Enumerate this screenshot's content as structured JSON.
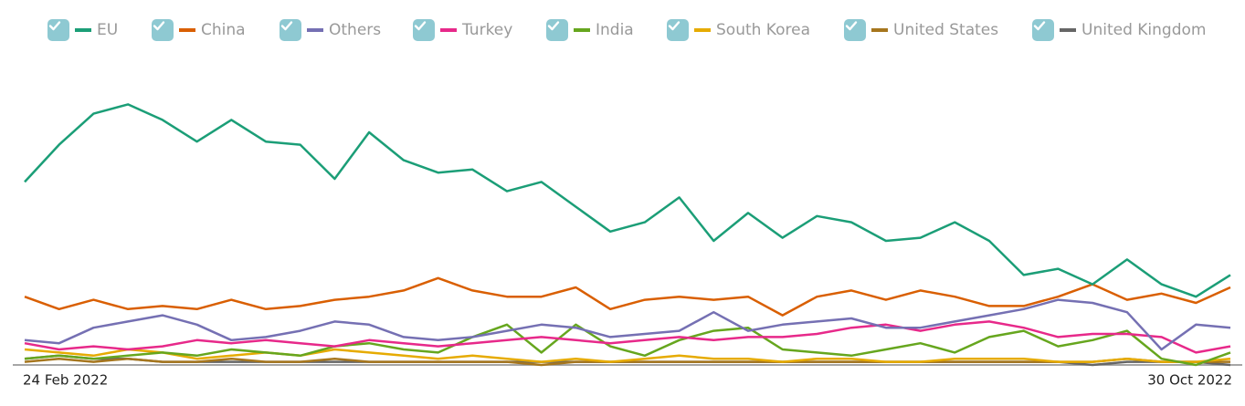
{
  "chart_data": {
    "type": "line",
    "categories": [
      "24 Feb 2022",
      null,
      null,
      null,
      null,
      null,
      null,
      null,
      null,
      null,
      null,
      null,
      null,
      null,
      null,
      null,
      null,
      null,
      null,
      null,
      null,
      null,
      null,
      null,
      null,
      null,
      null,
      null,
      null,
      null,
      null,
      null,
      null,
      null,
      null,
      "30 Oct 2022"
    ],
    "ylim": [
      0,
      100
    ],
    "series": [
      {
        "name": "EU",
        "color": "#1b9e77",
        "values": [
          59,
          71,
          81,
          84,
          79,
          72,
          79,
          72,
          71,
          60,
          75,
          66,
          62,
          63,
          56,
          59,
          51,
          43,
          46,
          54,
          40,
          49,
          41,
          48,
          46,
          40,
          41,
          46,
          40,
          29,
          31,
          26,
          34,
          26,
          22,
          29
        ]
      },
      {
        "name": "China",
        "color": "#d95f02",
        "values": [
          22,
          18,
          21,
          18,
          19,
          18,
          21,
          18,
          19,
          21,
          22,
          24,
          28,
          24,
          22,
          22,
          25,
          18,
          21,
          22,
          21,
          22,
          16,
          22,
          24,
          21,
          24,
          22,
          19,
          19,
          22,
          26,
          21,
          23,
          20,
          25
        ]
      },
      {
        "name": "Others",
        "color": "#7570b3",
        "values": [
          8,
          7,
          12,
          14,
          16,
          13,
          8,
          9,
          11,
          14,
          13,
          9,
          8,
          9,
          11,
          13,
          12,
          9,
          10,
          11,
          17,
          11,
          13,
          14,
          15,
          12,
          12,
          14,
          16,
          18,
          21,
          20,
          17,
          5,
          13,
          12
        ]
      },
      {
        "name": "Turkey",
        "color": "#e7298a",
        "values": [
          7,
          5,
          6,
          5,
          6,
          8,
          7,
          8,
          7,
          6,
          8,
          7,
          6,
          7,
          8,
          9,
          8,
          7,
          8,
          9,
          8,
          9,
          9,
          10,
          12,
          13,
          11,
          13,
          14,
          12,
          9,
          10,
          10,
          9,
          4,
          6
        ]
      },
      {
        "name": "India",
        "color": "#66a61e",
        "values": [
          2,
          3,
          2,
          3,
          4,
          3,
          5,
          4,
          3,
          6,
          7,
          5,
          4,
          9,
          13,
          4,
          13,
          6,
          3,
          8,
          11,
          12,
          5,
          4,
          3,
          5,
          7,
          4,
          9,
          11,
          6,
          8,
          11,
          2,
          0,
          4
        ]
      },
      {
        "name": "South Korea",
        "color": "#e6ab02",
        "values": [
          5,
          4,
          3,
          5,
          4,
          2,
          3,
          4,
          3,
          5,
          4,
          3,
          2,
          3,
          2,
          1,
          2,
          1,
          2,
          3,
          2,
          2,
          1,
          2,
          2,
          1,
          1,
          2,
          2,
          2,
          1,
          1,
          2,
          1,
          1,
          2
        ]
      },
      {
        "name": "United States",
        "color": "#a6761d",
        "values": [
          1,
          2,
          1,
          2,
          1,
          1,
          2,
          1,
          1,
          2,
          1,
          1,
          1,
          1,
          1,
          0,
          1,
          1,
          1,
          1,
          1,
          1,
          1,
          1,
          1,
          1,
          1,
          1,
          1,
          1,
          1,
          1,
          2,
          1,
          1,
          1
        ]
      },
      {
        "name": "United Kingdom",
        "color": "#666666",
        "values": [
          2,
          3,
          2,
          2,
          1,
          1,
          1,
          1,
          1,
          1,
          1,
          1,
          1,
          1,
          1,
          1,
          1,
          1,
          1,
          1,
          1,
          1,
          1,
          1,
          1,
          1,
          1,
          1,
          1,
          1,
          1,
          0,
          1,
          1,
          1,
          0
        ]
      }
    ]
  }
}
